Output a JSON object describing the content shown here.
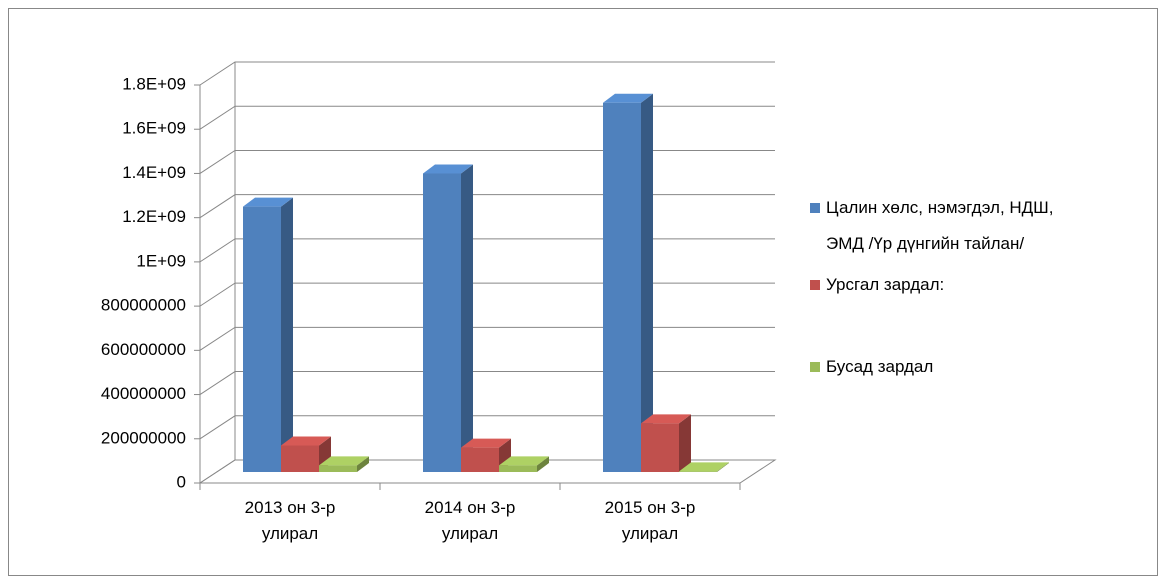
{
  "chart_data": {
    "type": "bar3d",
    "categories": [
      "2013 он 3-р улирал",
      "2014 он 3-р улирал",
      "2015 он 3-р улирал"
    ],
    "series": [
      {
        "name": "Цалин хөлс, нэмэгдэл, НДШ, ЭМД /Үр дүнгийн тайлан/",
        "color": "#4f81bd",
        "values": [
          1200000000,
          1350000000,
          1670000000
        ]
      },
      {
        "name": "Урсгал зардал:",
        "color": "#c0504d",
        "values": [
          120000000,
          110000000,
          220000000
        ]
      },
      {
        "name": "Бусад зардал",
        "color": "#9bbb59",
        "values": [
          30000000,
          30000000,
          3000000
        ]
      }
    ],
    "ylim": [
      0,
      1800000000
    ],
    "yticks": [
      0,
      200000000,
      400000000,
      600000000,
      800000000,
      {
        "value": 1000000000,
        "label": "1E+09"
      },
      {
        "value": 1200000000,
        "label": "1.2E+09"
      },
      {
        "value": 1400000000,
        "label": "1.4E+09"
      },
      {
        "value": 1600000000,
        "label": "1.6E+09"
      },
      {
        "value": 1800000000,
        "label": "1.8E+09"
      }
    ],
    "grid": true,
    "legend": "right"
  }
}
